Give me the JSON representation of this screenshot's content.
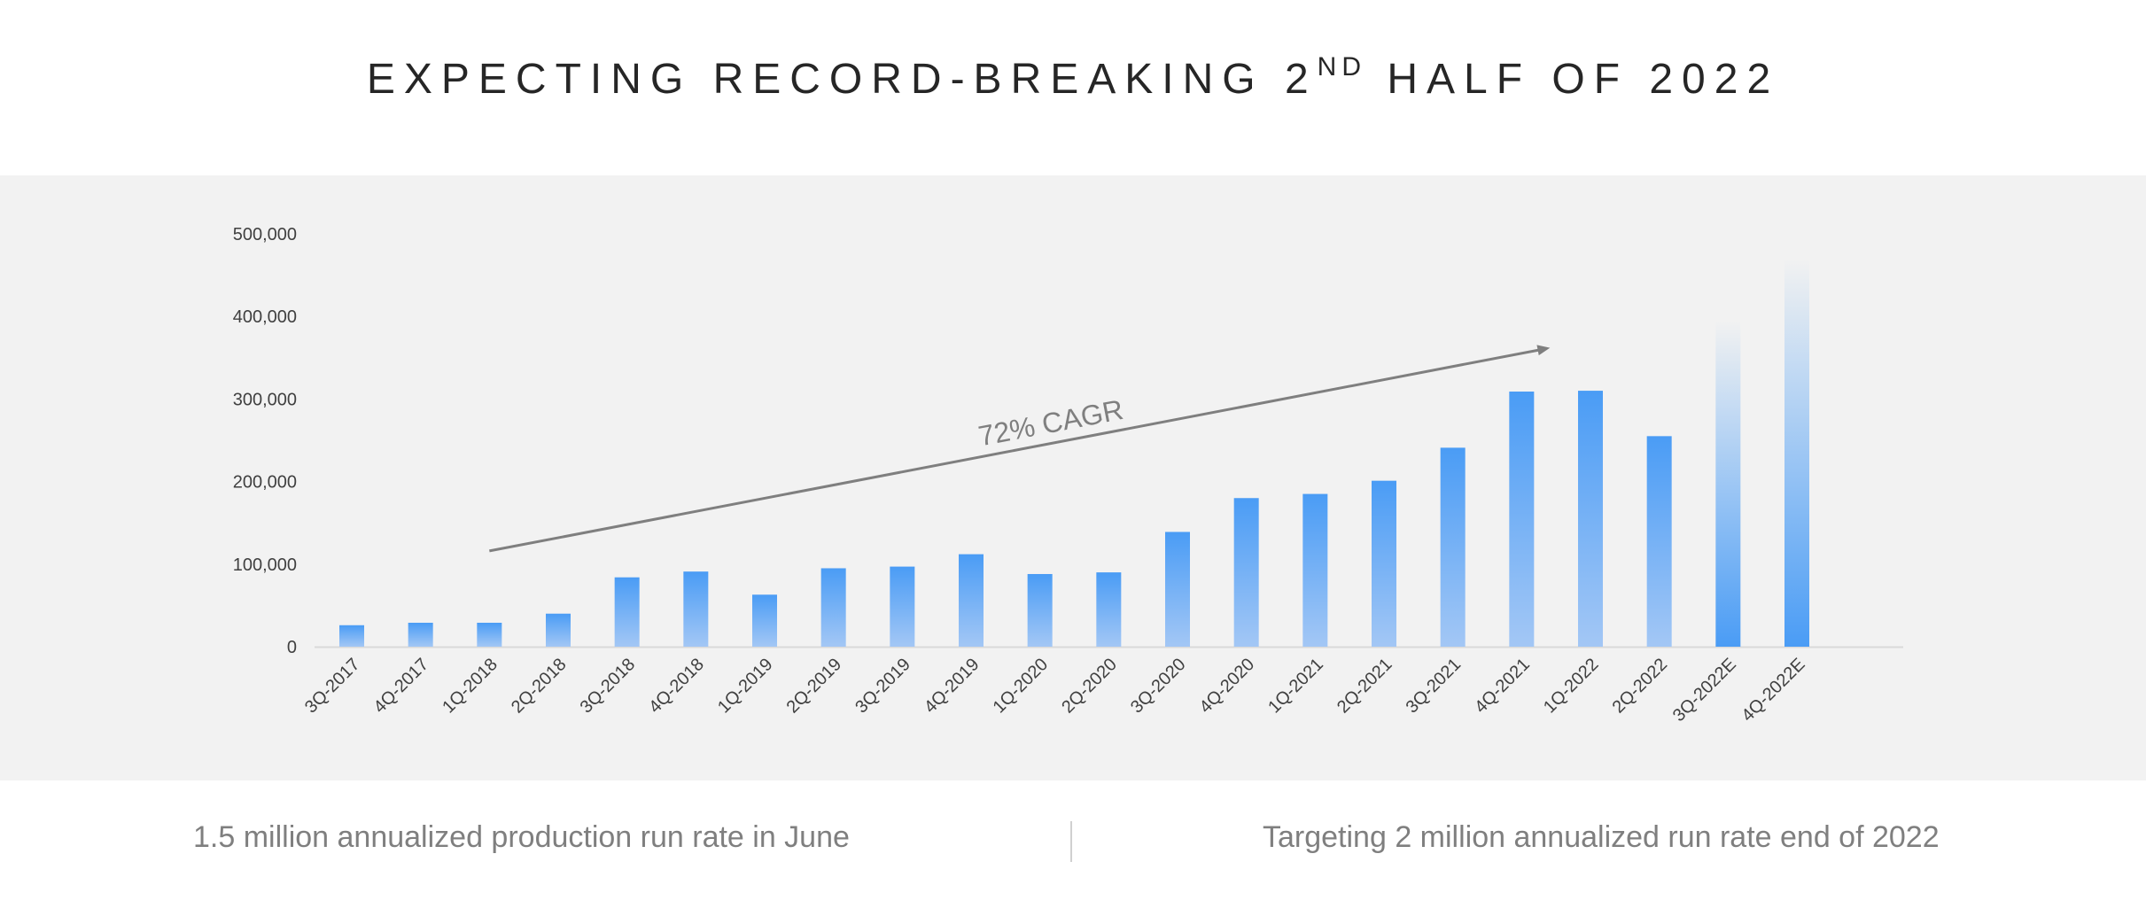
{
  "header": {
    "title_pre": "EXPECTING RECORD-BREAKING 2",
    "title_sup": "ND",
    "title_post": " HALF OF 2022"
  },
  "colors": {
    "bar_top": "#4a9cf5",
    "bar_bottom": "#a3c7f5",
    "panel": "#f2f2f2",
    "arrow": "#7f7f7f"
  },
  "chart_data": {
    "type": "bar",
    "title": "",
    "xlabel": "",
    "ylabel": "",
    "ylim": [
      0,
      500000
    ],
    "yticks": [
      0,
      100000,
      200000,
      300000,
      400000,
      500000
    ],
    "ytick_labels": [
      "0",
      "100,000",
      "200,000",
      "300,000",
      "400,000",
      "500,000"
    ],
    "categories": [
      "3Q-2017",
      "4Q-2017",
      "1Q-2018",
      "2Q-2018",
      "3Q-2018",
      "4Q-2018",
      "1Q-2019",
      "2Q-2019",
      "3Q-2019",
      "4Q-2019",
      "1Q-2020",
      "2Q-2020",
      "3Q-2020",
      "4Q-2020",
      "1Q-2021",
      "2Q-2021",
      "3Q-2021",
      "4Q-2021",
      "1Q-2022",
      "2Q-2022",
      "3Q-2022E",
      "4Q-2022E"
    ],
    "values": [
      26000,
      29000,
      29000,
      40000,
      84000,
      91000,
      63000,
      95000,
      97000,
      112000,
      88000,
      90000,
      139000,
      180000,
      185000,
      201000,
      241000,
      309000,
      310000,
      255000,
      395000,
      470000
    ],
    "estimate_categories": [
      "3Q-2022E",
      "4Q-2022E"
    ],
    "grid": false,
    "annotations": [
      {
        "text": "72% CAGR",
        "type": "arrow",
        "from": {
          "category": "1Q-2018",
          "value": 116000
        },
        "to": {
          "category": "4Q-2021",
          "value": 362000
        }
      }
    ]
  },
  "footer": {
    "left": "1.5 million annualized production run rate in June",
    "right": "Targeting 2 million annualized run rate end of 2022"
  }
}
